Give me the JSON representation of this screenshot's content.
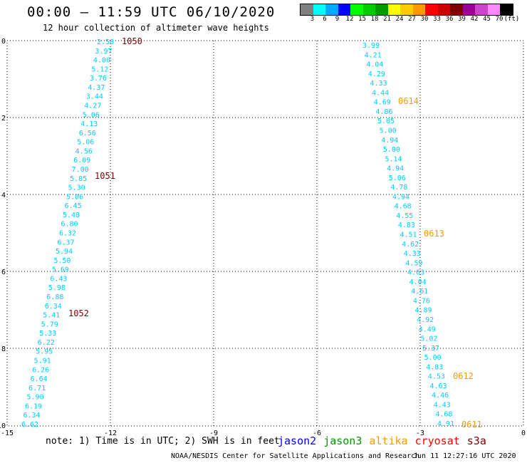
{
  "header": {
    "title": "00:00 – 11:59 UTC 06/10/2020",
    "subtitle": "12 hour collection of altimeter wave heights"
  },
  "color_legend": {
    "labels": [
      "3",
      "6",
      "9",
      "12",
      "15",
      "18",
      "21",
      "24",
      "27",
      "30",
      "33",
      "36",
      "39",
      "42",
      "45",
      "70",
      "(ft)"
    ],
    "colors": [
      "#808080",
      "#00ffff",
      "#00aaff",
      "#0000ff",
      "#00ff00",
      "#00cc00",
      "#009900",
      "#ffff00",
      "#ffcc00",
      "#ff9900",
      "#ff0000",
      "#cc0000",
      "#800000",
      "#990099",
      "#cc44cc",
      "#ff88ff",
      "#000000"
    ]
  },
  "axes": {
    "x_ticks": [
      "-15",
      "-12",
      "-9",
      "-6",
      "-3",
      "0"
    ],
    "y_ticks": [
      "0",
      "-2",
      "-4",
      "-6",
      "-8",
      "-10"
    ]
  },
  "tracks": [
    {
      "name": "left-track",
      "color": "#00ccff",
      "values": [
        "2.58",
        "3.97",
        "4.00",
        "5.12",
        "3.76",
        "4.37",
        "3.44",
        "4.27",
        "5.06",
        "4.13",
        "6.56",
        "5.06",
        "4.56",
        "6.09",
        "7.00",
        "5.85",
        "5.30",
        "5.06",
        "6.45",
        "5.48",
        "6.80",
        "6.32",
        "6.37",
        "5.94",
        "5.50",
        "5.69",
        "6.43",
        "5.98",
        "6.88",
        "6.34",
        "5.41",
        "5.79",
        "5.33",
        "6.22",
        "5.95",
        "5.91",
        "6.26",
        "6.64",
        "6.71",
        "5.90",
        "6.19",
        "6.34",
        "6.62"
      ]
    },
    {
      "name": "right-track",
      "color": "#00ccff",
      "values": [
        "3.99",
        "4.21",
        "4.04",
        "4.29",
        "4.33",
        "4.44",
        "4.69",
        "4.86",
        "5.05",
        "5.00",
        "4.94",
        "5.00",
        "5.14",
        "4.94",
        "5.06",
        "4.78",
        "4.94",
        "4.68",
        "4.55",
        "4.83",
        "4.51",
        "4.62",
        "4.33",
        "4.59",
        "4.63",
        "4.04",
        "4.61",
        "4.76",
        "4.89",
        "4.92",
        "4.49",
        "5.02",
        "5.37",
        "5.00",
        "4.83",
        "4.53",
        "4.63",
        "4.46",
        "4.43",
        "4.68",
        "4.91"
      ]
    }
  ],
  "time_labels": [
    {
      "text": "1050",
      "color": "#800000"
    },
    {
      "text": "1051",
      "color": "#800000"
    },
    {
      "text": "1052",
      "color": "#800000"
    },
    {
      "text": "0614",
      "color": "#ff9900"
    },
    {
      "text": "0613",
      "color": "#ff9900"
    },
    {
      "text": "0612",
      "color": "#ff9900"
    },
    {
      "text": "0611",
      "color": "#ff9900"
    }
  ],
  "footer": {
    "note": "note: 1) Time is in UTC; 2) SWH is in feet",
    "satellites": [
      {
        "name": "jason2",
        "color": "#0000ff"
      },
      {
        "name": "jason3",
        "color": "#009900"
      },
      {
        "name": "altika",
        "color": "#ff9900"
      },
      {
        "name": "cryosat",
        "color": "#ff0000"
      },
      {
        "name": "s3a",
        "color": "#800000"
      }
    ],
    "credit": "NOAA/NESDIS Center for Satellite Applications and Research",
    "timestamp": "Jun 11 12:27:16 UTC 2020"
  }
}
